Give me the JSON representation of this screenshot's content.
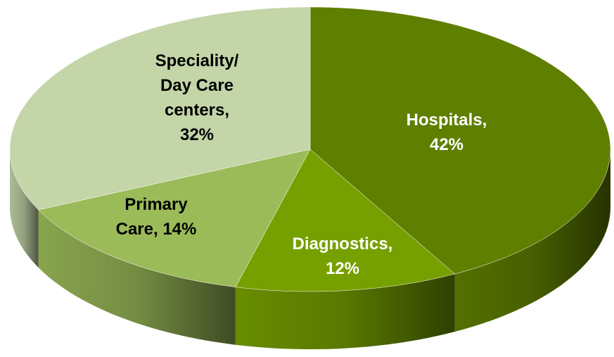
{
  "chart_data": {
    "type": "pie3d",
    "labels": [
      [
        "Hospitals,",
        "42%"
      ],
      [
        "Diagnostics,",
        "12%"
      ],
      [
        "Primary",
        "Care, 14%"
      ],
      [
        "Speciality/",
        "Day Care",
        "centers,",
        "32%"
      ]
    ],
    "values": [
      42,
      12,
      14,
      32
    ],
    "colors": [
      "#5f7f00",
      "#76a000",
      "#9bbb59",
      "#c4d5a8"
    ],
    "label_colors": [
      "#ffffff",
      "#ffffff",
      "#000000",
      "#000000"
    ]
  }
}
